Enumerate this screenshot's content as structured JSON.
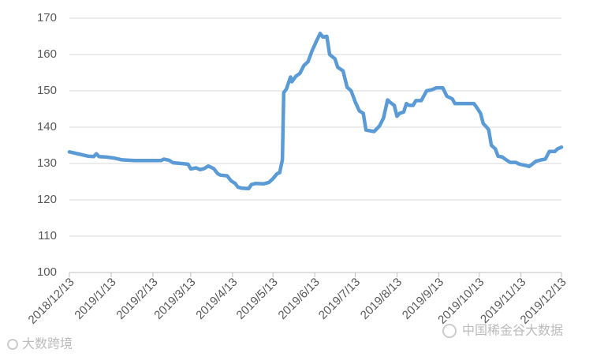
{
  "chart_data": {
    "type": "line",
    "x": [
      "2018/12/13",
      "2018/12/20",
      "2018/12/27",
      "2018/12/31",
      "2019/1/2",
      "2019/1/4",
      "2019/1/9",
      "2019/1/15",
      "2019/1/21",
      "2019/1/30",
      "2019/2/11",
      "2019/2/19",
      "2019/2/21",
      "2019/2/25",
      "2019/2/28",
      "2019/3/6",
      "2019/3/11",
      "2019/3/13",
      "2019/3/17",
      "2019/3/20",
      "2019/3/23",
      "2019/3/26",
      "2019/3/30",
      "2019/4/2",
      "2019/4/4",
      "2019/4/9",
      "2019/4/12",
      "2019/4/15",
      "2019/4/17",
      "2019/4/20",
      "2019/4/25",
      "2019/4/27",
      "2019/4/30",
      "2019/5/6",
      "2019/5/10",
      "2019/5/13",
      "2019/5/16",
      "2019/5/18",
      "2019/5/20",
      "2019/5/21",
      "2019/5/23",
      "2019/5/26",
      "2019/5/27",
      "2019/5/30",
      "2019/6/2",
      "2019/6/5",
      "2019/6/8",
      "2019/6/11",
      "2019/6/14",
      "2019/6/17",
      "2019/6/19",
      "2019/6/22",
      "2019/6/24",
      "2019/6/28",
      "2019/6/30",
      "2019/7/4",
      "2019/7/7",
      "2019/7/10",
      "2019/7/13",
      "2019/7/16",
      "2019/7/19",
      "2019/7/21",
      "2019/7/27",
      "2019/7/31",
      "2019/8/3",
      "2019/8/6",
      "2019/8/8",
      "2019/8/11",
      "2019/8/13",
      "2019/8/15",
      "2019/8/18",
      "2019/8/20",
      "2019/8/22",
      "2019/8/25",
      "2019/8/27",
      "2019/8/31",
      "2019/9/4",
      "2019/9/8",
      "2019/9/11",
      "2019/9/16",
      "2019/9/19",
      "2019/9/23",
      "2019/9/25",
      "2019/10/2",
      "2019/10/9",
      "2019/10/11",
      "2019/10/14",
      "2019/10/16",
      "2019/10/18",
      "2019/10/20",
      "2019/10/22",
      "2019/10/25",
      "2019/10/27",
      "2019/10/30",
      "2019/11/2",
      "2019/11/5",
      "2019/11/9",
      "2019/11/12",
      "2019/11/16",
      "2019/11/19",
      "2019/11/22",
      "2019/11/24",
      "2019/11/28",
      "2019/12/1",
      "2019/12/4",
      "2019/12/8",
      "2019/12/10",
      "2019/12/13"
    ],
    "series": [
      {
        "color": "#5b9bd5",
        "values": [
          133.2,
          132.6,
          132.0,
          131.9,
          132.7,
          131.9,
          131.8,
          131.5,
          131.0,
          130.8,
          130.8,
          130.8,
          131.2,
          130.9,
          130.2,
          130.0,
          129.8,
          128.5,
          128.8,
          128.3,
          128.6,
          129.3,
          128.6,
          127.2,
          126.8,
          126.6,
          125.2,
          124.5,
          123.5,
          123.2,
          123.1,
          124.2,
          124.5,
          124.4,
          124.8,
          125.8,
          127.2,
          127.5,
          131,
          149.5,
          150.5,
          153.8,
          152.5,
          154.0,
          154.8,
          157,
          158,
          161,
          163.5,
          165.8,
          164.8,
          165,
          160,
          158.8,
          156.5,
          155.5,
          151,
          150,
          147,
          144.5,
          143.8,
          139.2,
          138.8,
          140.3,
          142.5,
          147.5,
          146.8,
          146,
          143,
          143.8,
          144.2,
          146.5,
          146,
          146,
          147.3,
          147.3,
          150,
          150.3,
          150.8,
          150.8,
          148.5,
          147.8,
          146.5,
          146.5,
          146.5,
          145.5,
          143.8,
          141,
          140.2,
          139.3,
          135,
          134,
          132,
          131.8,
          131,
          130.3,
          130.3,
          129.8,
          129.5,
          129.2,
          130,
          130.6,
          131,
          131.2,
          133.3,
          133.3,
          134,
          134.5
        ]
      }
    ],
    "xlim": [
      "2018/12/13",
      "2019/12/13"
    ],
    "xticks": [
      "2018/12/13",
      "2019/1/13",
      "2019/2/13",
      "2019/3/13",
      "2019/4/13",
      "2019/5/13",
      "2019/6/13",
      "2019/7/13",
      "2019/8/13",
      "2019/9/13",
      "2019/10/13",
      "2019/11/13",
      "2019/12/13"
    ],
    "ylim": [
      100,
      170
    ],
    "yticks": [
      100,
      110,
      120,
      130,
      140,
      150,
      160,
      170
    ],
    "grid": true,
    "watermarks": [
      "大数跨境",
      "中国稀金谷大数据"
    ]
  }
}
